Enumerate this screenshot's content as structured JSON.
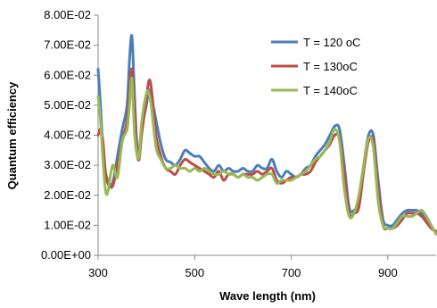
{
  "chart_data": {
    "type": "line",
    "title": "",
    "xlabel": "Wave length (nm)",
    "ylabel": "Quantum  efficiency",
    "xlim": [
      300,
      1000
    ],
    "ylim": [
      0,
      0.08
    ],
    "x_ticks": [
      300,
      500,
      700,
      900
    ],
    "x_tick_labels": [
      "300",
      "500",
      "700",
      "900"
    ],
    "y_ticks": [
      0,
      0.01,
      0.02,
      0.03,
      0.04,
      0.05,
      0.06,
      0.07,
      0.08
    ],
    "y_tick_labels": [
      "0.00E+00",
      "1.00E-02",
      "2.00E-02",
      "3.00E-02",
      "4.00E-02",
      "5.00E-02",
      "6.00E-02",
      "7.00E-02",
      "8.00E-02"
    ],
    "grid": false,
    "legend_position": "top-right",
    "series": [
      {
        "name": "T = 120 oC",
        "color": "#4a7ebb",
        "x": [
          300,
          305,
          310,
          315,
          320,
          330,
          340,
          350,
          360,
          365,
          370,
          375,
          380,
          385,
          390,
          400,
          405,
          410,
          420,
          430,
          440,
          450,
          460,
          470,
          480,
          490,
          500,
          510,
          520,
          530,
          540,
          550,
          560,
          570,
          580,
          590,
          600,
          610,
          620,
          630,
          640,
          650,
          660,
          670,
          680,
          690,
          700,
          710,
          720,
          730,
          740,
          750,
          760,
          770,
          780,
          790,
          800,
          810,
          820,
          830,
          840,
          850,
          860,
          870,
          880,
          890,
          900,
          910,
          920,
          930,
          940,
          950,
          960,
          970,
          980,
          990,
          1000
        ],
        "y": [
          0.062,
          0.05,
          0.035,
          0.028,
          0.025,
          0.024,
          0.033,
          0.042,
          0.05,
          0.065,
          0.073,
          0.055,
          0.038,
          0.035,
          0.042,
          0.05,
          0.055,
          0.053,
          0.045,
          0.037,
          0.032,
          0.031,
          0.03,
          0.032,
          0.035,
          0.034,
          0.033,
          0.033,
          0.031,
          0.029,
          0.028,
          0.03,
          0.028,
          0.029,
          0.028,
          0.028,
          0.029,
          0.028,
          0.028,
          0.03,
          0.029,
          0.029,
          0.032,
          0.028,
          0.026,
          0.028,
          0.027,
          0.026,
          0.027,
          0.029,
          0.03,
          0.033,
          0.035,
          0.037,
          0.04,
          0.043,
          0.042,
          0.03,
          0.016,
          0.015,
          0.018,
          0.03,
          0.04,
          0.04,
          0.025,
          0.012,
          0.01,
          0.01,
          0.012,
          0.014,
          0.015,
          0.015,
          0.015,
          0.014,
          0.012,
          0.009,
          0.008
        ]
      },
      {
        "name": "T = 130oC",
        "color": "#be4b48",
        "x": [
          300,
          305,
          310,
          315,
          320,
          330,
          340,
          350,
          360,
          365,
          370,
          375,
          380,
          385,
          390,
          400,
          405,
          410,
          420,
          430,
          440,
          450,
          460,
          470,
          480,
          490,
          500,
          510,
          520,
          530,
          540,
          550,
          560,
          570,
          580,
          590,
          600,
          610,
          620,
          630,
          640,
          650,
          660,
          670,
          680,
          690,
          700,
          710,
          720,
          730,
          740,
          750,
          760,
          770,
          780,
          790,
          800,
          810,
          820,
          830,
          840,
          850,
          860,
          870,
          880,
          890,
          900,
          910,
          920,
          930,
          940,
          950,
          960,
          970,
          980,
          990,
          1000
        ],
        "y": [
          0.04,
          0.042,
          0.038,
          0.028,
          0.024,
          0.023,
          0.03,
          0.038,
          0.045,
          0.055,
          0.062,
          0.05,
          0.035,
          0.032,
          0.04,
          0.052,
          0.058,
          0.056,
          0.04,
          0.033,
          0.029,
          0.028,
          0.027,
          0.03,
          0.032,
          0.031,
          0.03,
          0.029,
          0.028,
          0.027,
          0.026,
          0.028,
          0.025,
          0.027,
          0.027,
          0.026,
          0.027,
          0.027,
          0.027,
          0.028,
          0.027,
          0.028,
          0.029,
          0.025,
          0.024,
          0.025,
          0.026,
          0.026,
          0.027,
          0.027,
          0.028,
          0.031,
          0.033,
          0.035,
          0.037,
          0.04,
          0.039,
          0.027,
          0.014,
          0.014,
          0.016,
          0.028,
          0.038,
          0.038,
          0.022,
          0.01,
          0.009,
          0.009,
          0.01,
          0.012,
          0.014,
          0.014,
          0.014,
          0.013,
          0.011,
          0.009,
          0.008
        ]
      },
      {
        "name": "T = 140oC",
        "color": "#98b954",
        "x": [
          300,
          305,
          310,
          315,
          320,
          330,
          340,
          350,
          360,
          365,
          370,
          375,
          380,
          385,
          390,
          400,
          405,
          410,
          420,
          430,
          440,
          450,
          460,
          470,
          480,
          490,
          500,
          510,
          520,
          530,
          540,
          550,
          560,
          570,
          580,
          590,
          600,
          610,
          620,
          630,
          640,
          650,
          660,
          670,
          680,
          690,
          700,
          710,
          720,
          730,
          740,
          750,
          760,
          770,
          780,
          790,
          800,
          810,
          820,
          830,
          840,
          850,
          860,
          870,
          880,
          890,
          900,
          910,
          920,
          930,
          940,
          950,
          960,
          970,
          980,
          990,
          1000
        ],
        "y": [
          0.053,
          0.045,
          0.032,
          0.022,
          0.021,
          0.03,
          0.026,
          0.038,
          0.042,
          0.05,
          0.059,
          0.042,
          0.034,
          0.033,
          0.044,
          0.054,
          0.054,
          0.05,
          0.036,
          0.032,
          0.029,
          0.029,
          0.03,
          0.029,
          0.029,
          0.028,
          0.029,
          0.028,
          0.029,
          0.028,
          0.027,
          0.027,
          0.028,
          0.027,
          0.027,
          0.026,
          0.027,
          0.026,
          0.026,
          0.025,
          0.026,
          0.027,
          0.027,
          0.024,
          0.025,
          0.025,
          0.025,
          0.026,
          0.027,
          0.028,
          0.03,
          0.032,
          0.033,
          0.035,
          0.038,
          0.042,
          0.038,
          0.022,
          0.013,
          0.014,
          0.02,
          0.03,
          0.039,
          0.036,
          0.018,
          0.01,
          0.009,
          0.009,
          0.011,
          0.013,
          0.013,
          0.013,
          0.014,
          0.015,
          0.013,
          0.01,
          0.007
        ]
      }
    ]
  }
}
